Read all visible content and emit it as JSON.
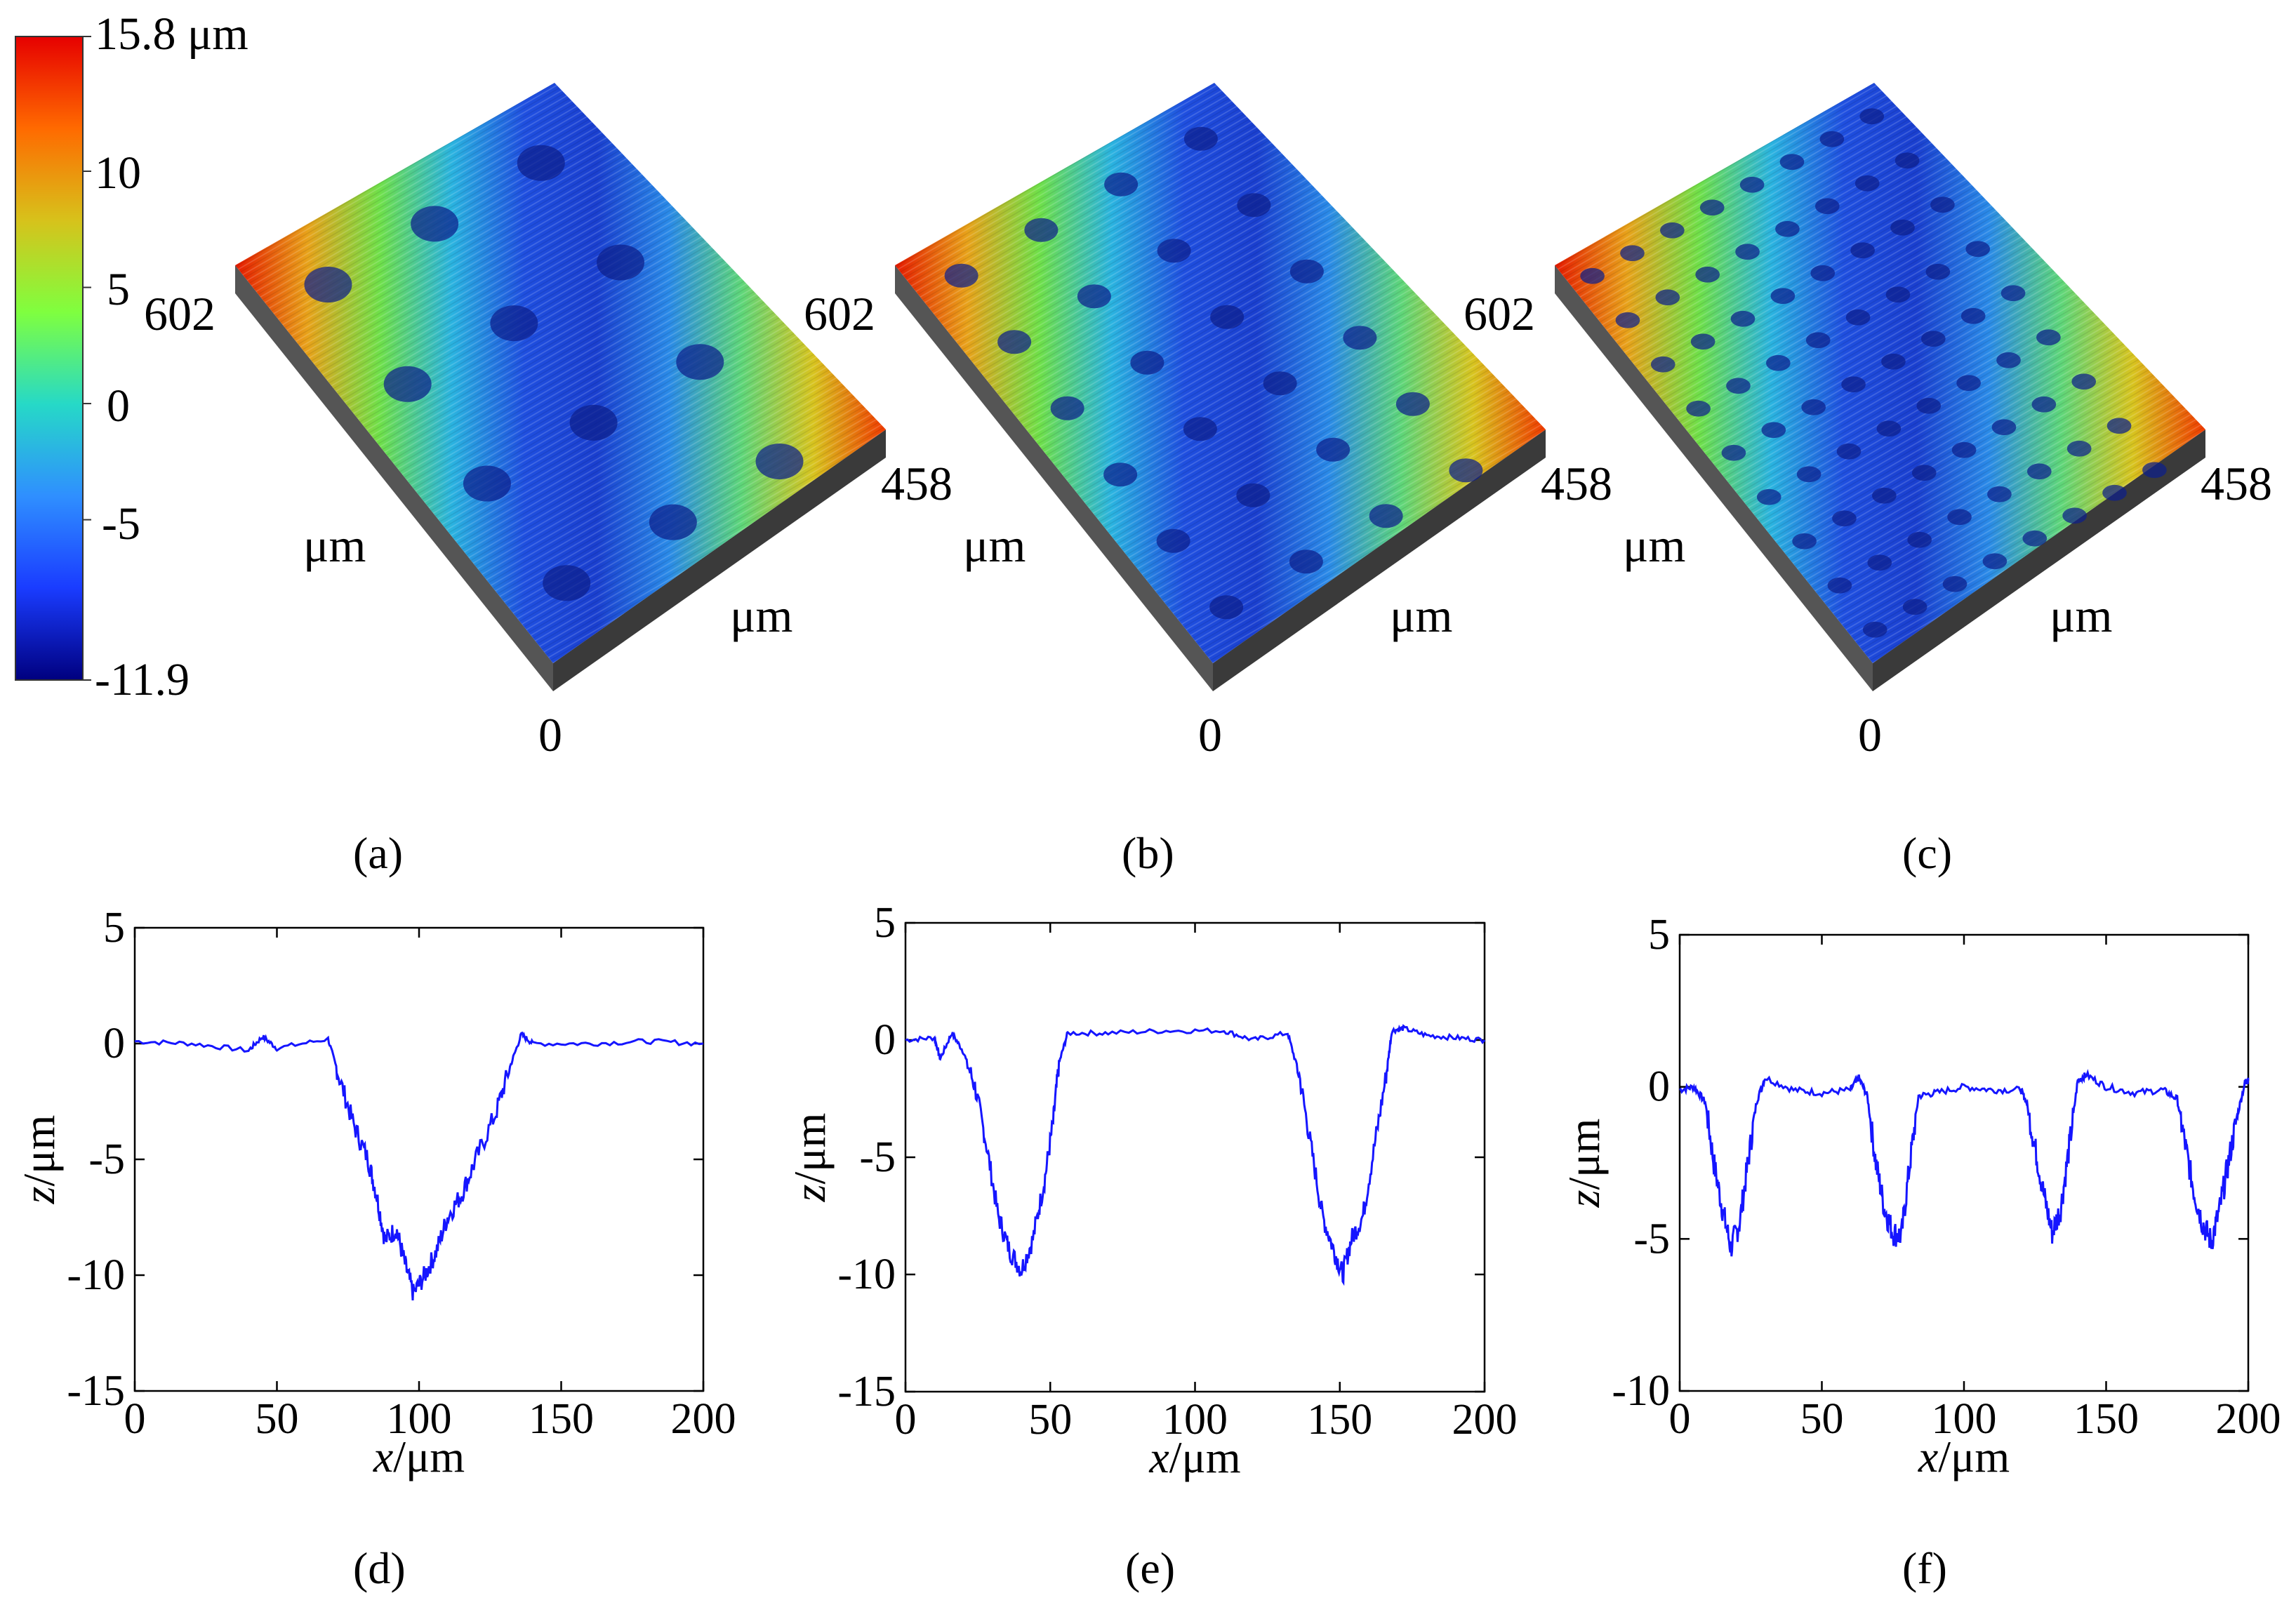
{
  "colorbar": {
    "min": -11.9,
    "max": 15.8,
    "tick_labels": [
      "15.8 μm",
      "10",
      "5",
      "0",
      "-5",
      "-11.9"
    ],
    "tick_values": [
      15.8,
      10,
      5,
      0,
      -5,
      -11.9
    ],
    "colors": [
      "#00007f",
      "#1a3cff",
      "#2f8fff",
      "#26d9c7",
      "#7fff3f",
      "#d7c21b",
      "#ff6a00",
      "#e60000"
    ]
  },
  "surfaces": [
    {
      "panel_label": "(a)",
      "label_602": "602",
      "label_458": "458",
      "label_um_left": "μm",
      "label_um_right": "μm",
      "label_0": "0",
      "pits_per_row": 3,
      "pit_rows": 4
    },
    {
      "panel_label": "(b)",
      "label_602": "602",
      "label_458": "458",
      "label_um_left": "μm",
      "label_um_right": "μm",
      "label_0": "0",
      "pits_per_row": 4,
      "pit_rows": 6
    },
    {
      "panel_label": "(c)",
      "label_602": "602",
      "label_458": "458",
      "label_um_left": "μm",
      "label_um_right": "μm",
      "label_0": "0",
      "pits_per_row": 8,
      "pit_rows": 9
    }
  ],
  "chart_data": [
    {
      "type": "line",
      "panel_label": "(d)",
      "xlabel_italic": "x",
      "xlabel_unit": "/μm",
      "ylabel_italic": "z",
      "ylabel_unit": "/μm",
      "xlim": [
        0,
        200
      ],
      "ylim": [
        -15,
        5
      ],
      "xticks": [
        0,
        50,
        100,
        150,
        200
      ],
      "yticks": [
        5,
        0,
        -5,
        -10,
        -15
      ],
      "tick_labels_x": [
        "0",
        "50",
        "100",
        "150",
        "200"
      ],
      "tick_labels_y": [
        "5",
        "0",
        "-5",
        "-10",
        "-15"
      ],
      "color": "#1515ff",
      "series": [
        {
          "name": "profile",
          "x": [
            0,
            20,
            40,
            45,
            50,
            68,
            72,
            77,
            82,
            85,
            88,
            92,
            95,
            98,
            102,
            106,
            110,
            115,
            120,
            127,
            132,
            136,
            140,
            160,
            180,
            200
          ],
          "y": [
            0.1,
            0.0,
            -0.3,
            0.3,
            -0.2,
            0.2,
            -1.5,
            -3.5,
            -5.0,
            -6.5,
            -8.5,
            -8.0,
            -9.5,
            -10.8,
            -10.0,
            -9.0,
            -7.5,
            -6.5,
            -5.0,
            -3.0,
            -1.0,
            0.4,
            0.0,
            0.0,
            0.1,
            0.0
          ]
        }
      ]
    },
    {
      "type": "line",
      "panel_label": "(e)",
      "xlabel_italic": "x",
      "xlabel_unit": "/μm",
      "ylabel_italic": "z",
      "ylabel_unit": "/μm",
      "xlim": [
        0,
        200
      ],
      "ylim": [
        -15,
        5
      ],
      "xticks": [
        0,
        50,
        100,
        150,
        200
      ],
      "yticks": [
        5,
        0,
        -5,
        -10,
        -15
      ],
      "tick_labels_x": [
        "0",
        "50",
        "100",
        "150",
        "200"
      ],
      "tick_labels_y": [
        "5",
        "0",
        "-5",
        "-10",
        "-15"
      ],
      "color": "#1515ff",
      "series": [
        {
          "name": "profile",
          "x": [
            0,
            10,
            12,
            16,
            20,
            24,
            28,
            32,
            36,
            40,
            44,
            48,
            51,
            53,
            56,
            70,
            90,
            110,
            120,
            132,
            136,
            140,
            144,
            148,
            151,
            154,
            158,
            162,
            166,
            168,
            172,
            180,
            190,
            200
          ],
          "y": [
            0.0,
            0.1,
            -0.8,
            0.3,
            -0.5,
            -2.0,
            -4.5,
            -7.5,
            -9.0,
            -9.8,
            -8.5,
            -6.0,
            -3.5,
            -1.0,
            0.3,
            0.3,
            0.4,
            0.4,
            0.0,
            0.3,
            -1.5,
            -4.5,
            -7.5,
            -9.0,
            -10.0,
            -8.5,
            -7.5,
            -4.5,
            -1.5,
            0.4,
            0.5,
            0.2,
            0.1,
            0.0
          ]
        }
      ]
    },
    {
      "type": "line",
      "panel_label": "(f)",
      "xlabel_italic": "x",
      "xlabel_unit": "/μm",
      "ylabel_italic": "z",
      "ylabel_unit": "/μm",
      "xlim": [
        0,
        200
      ],
      "ylim": [
        -10,
        5
      ],
      "xticks": [
        0,
        50,
        100,
        150,
        200
      ],
      "yticks": [
        5,
        0,
        -5,
        -10
      ],
      "tick_labels_x": [
        "0",
        "50",
        "100",
        "150",
        "200"
      ],
      "tick_labels_y": [
        "5",
        "0",
        "-5",
        "-10"
      ],
      "color": "#1515ff",
      "series": [
        {
          "name": "profile",
          "x": [
            0,
            5,
            9,
            12,
            15,
            18,
            21,
            24,
            27,
            30,
            40,
            50,
            60,
            63,
            66,
            69,
            72,
            75,
            78,
            81,
            84,
            90,
            100,
            110,
            120,
            122,
            125,
            128,
            131,
            134,
            137,
            140,
            143,
            150,
            160,
            170,
            175,
            178,
            181,
            184,
            187,
            190,
            193,
            196,
            199,
            200
          ],
          "y": [
            -0.1,
            0.0,
            -0.5,
            -2.5,
            -4.0,
            -5.3,
            -4.5,
            -2.5,
            -0.5,
            0.3,
            -0.1,
            -0.2,
            -0.1,
            0.3,
            -0.3,
            -2.5,
            -4.0,
            -4.8,
            -4.9,
            -2.5,
            -0.3,
            -0.2,
            0.0,
            -0.1,
            -0.1,
            -0.5,
            -2.0,
            -3.5,
            -4.8,
            -4.0,
            -2.0,
            0.2,
            0.4,
            0.0,
            -0.2,
            -0.1,
            -0.4,
            -2.0,
            -3.5,
            -4.5,
            -5.1,
            -4.0,
            -2.5,
            -1.0,
            0.2,
            0.2
          ]
        }
      ]
    }
  ]
}
